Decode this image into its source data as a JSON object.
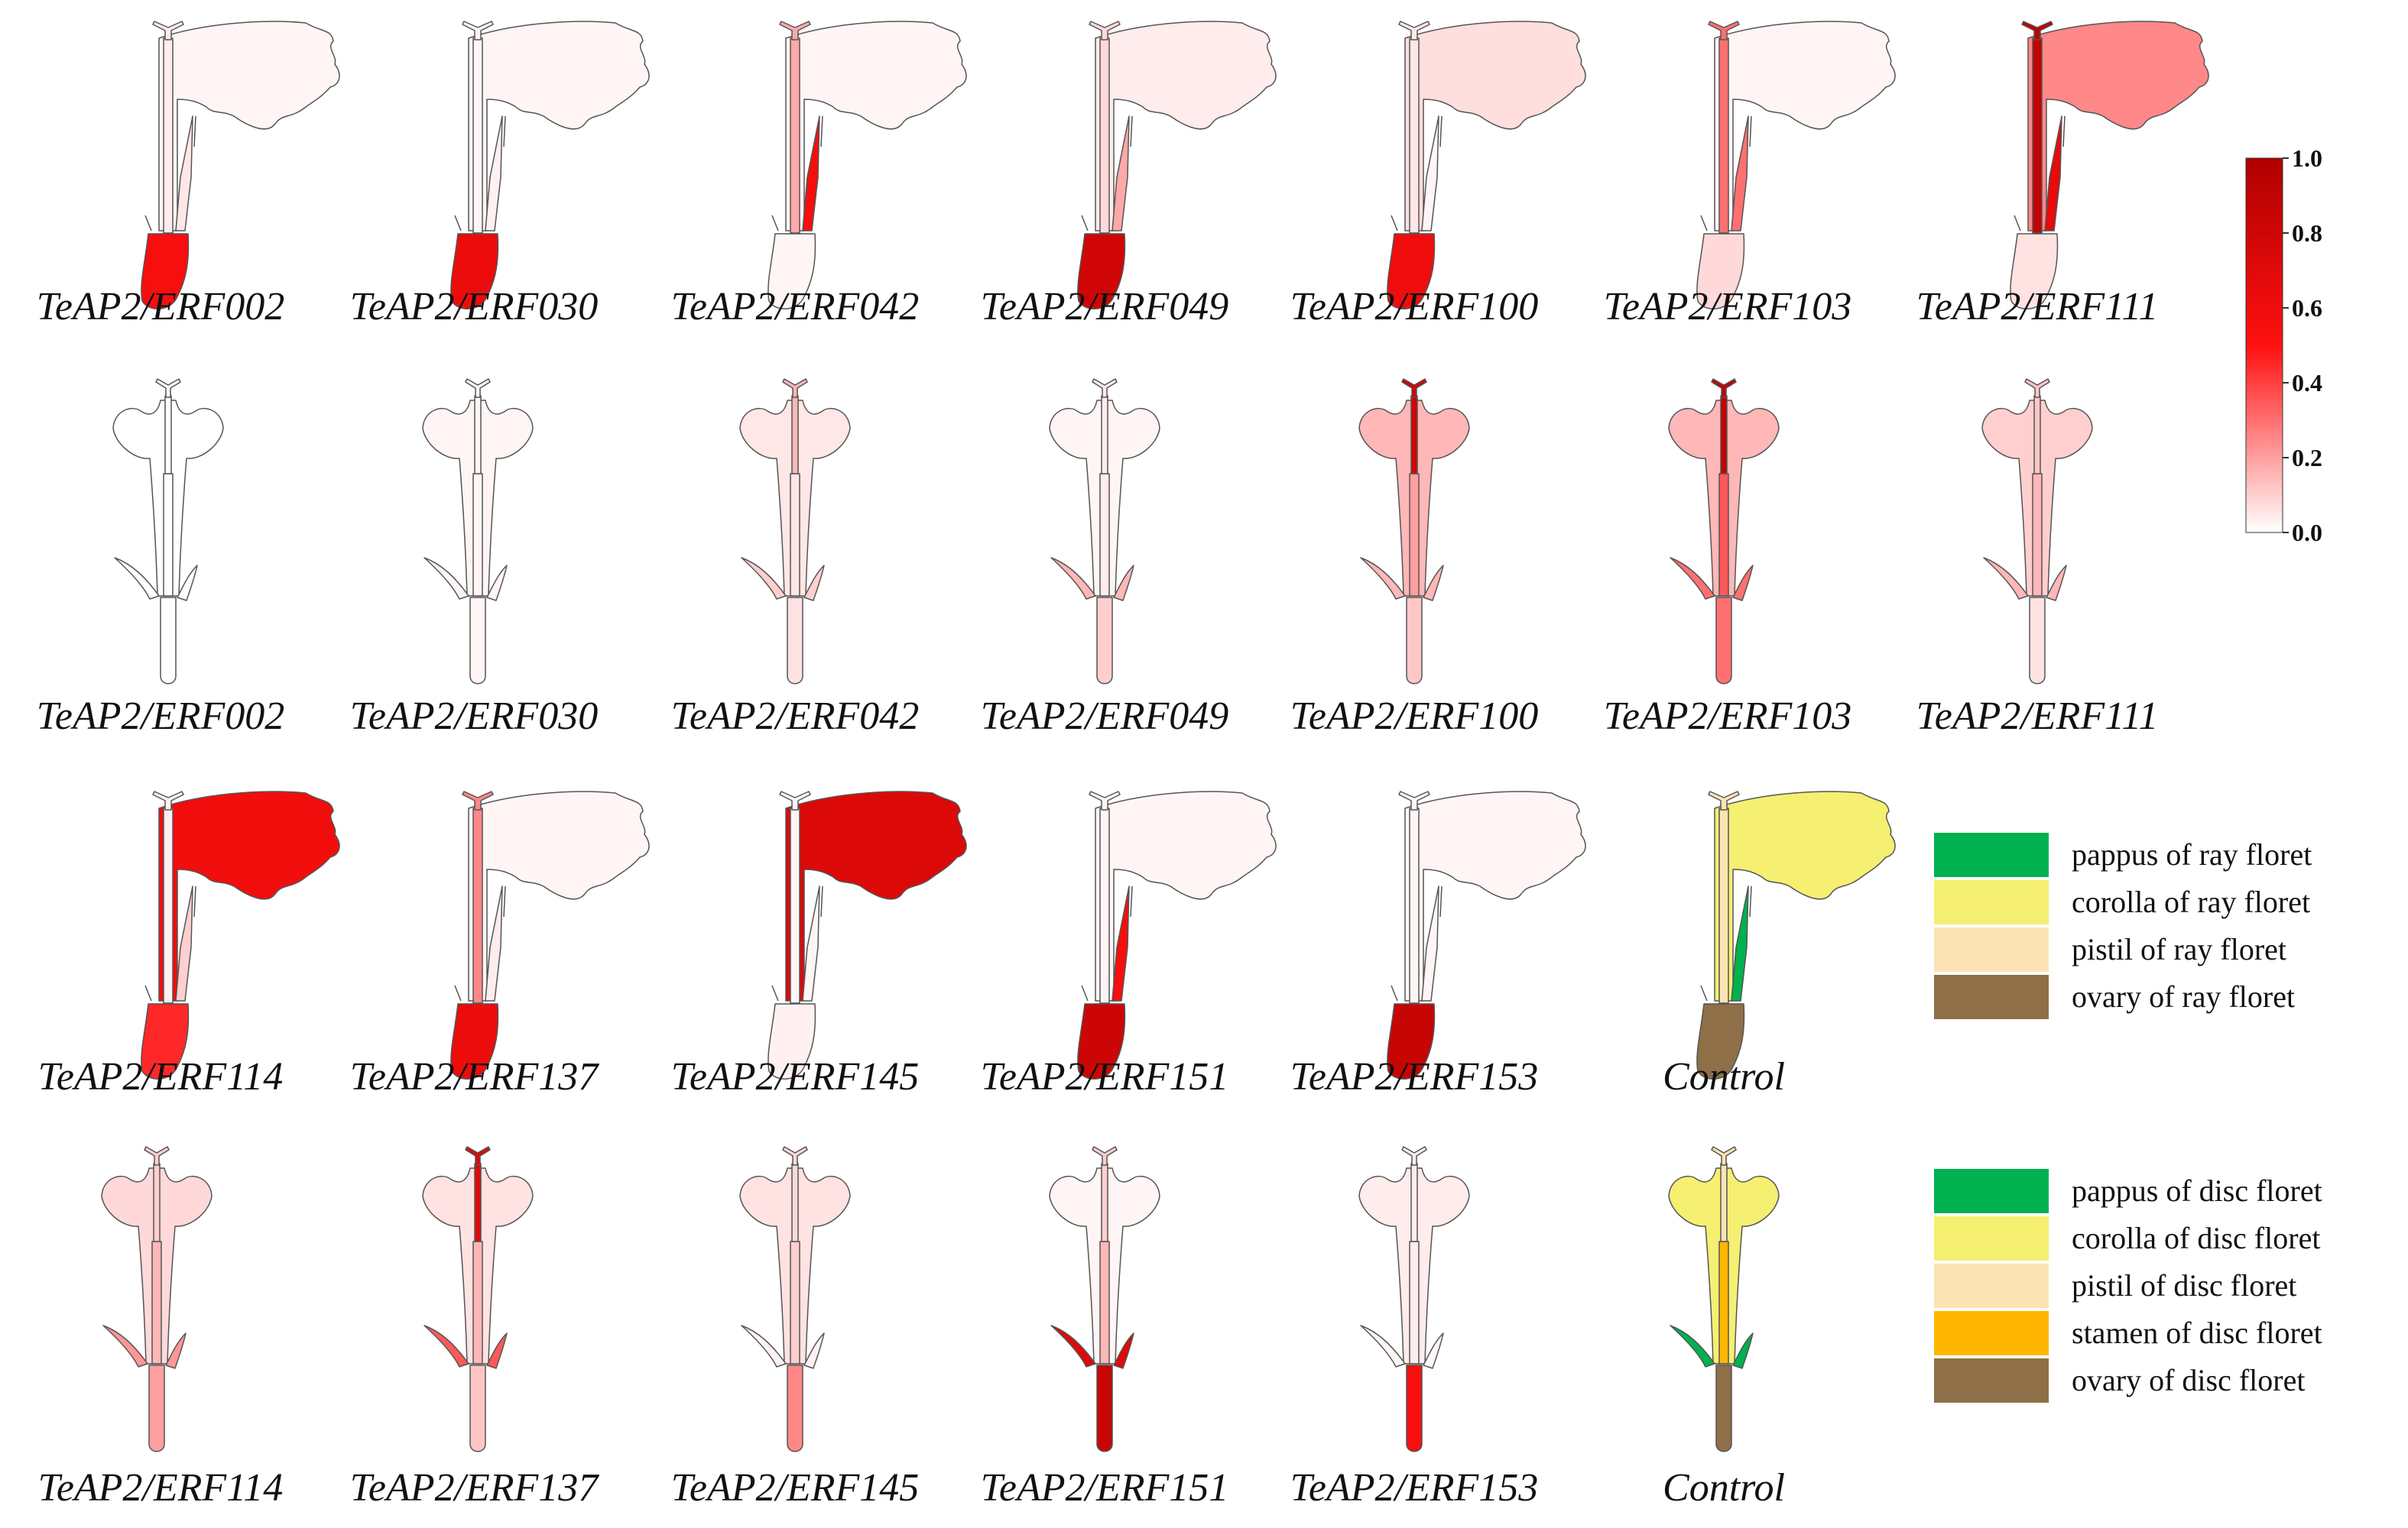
{
  "colormap": {
    "low": "#ffffff",
    "mid": "#ff1010",
    "high": "#b00000"
  },
  "colorbar": {
    "ticks": [
      "1.0",
      "0.8",
      "0.6",
      "0.4",
      "0.2",
      "0.0"
    ]
  },
  "rows": [
    {
      "type": "ray",
      "items": [
        {
          "label": "TeAP2/ERF002",
          "ovary": 0.55,
          "pistil": 0.04,
          "corolla": 0.02,
          "pappus": 0.05
        },
        {
          "label": "TeAP2/ERF030",
          "ovary": 0.62,
          "pistil": 0.02,
          "corolla": 0.02,
          "pappus": 0.03
        },
        {
          "label": "TeAP2/ERF042",
          "ovary": 0.02,
          "pistil": 0.18,
          "corolla": 0.02,
          "pappus": 0.55
        },
        {
          "label": "TeAP2/ERF049",
          "ovary": 0.8,
          "pistil": 0.08,
          "corolla": 0.04,
          "pappus": 0.18
        },
        {
          "label": "TeAP2/ERF100",
          "ovary": 0.6,
          "pistil": 0.05,
          "corolla": 0.07,
          "pappus": 0.02
        },
        {
          "label": "TeAP2/ERF103",
          "ovary": 0.08,
          "pistil": 0.3,
          "corolla": 0.02,
          "pappus": 0.3
        },
        {
          "label": "TeAP2/ERF111",
          "ovary": 0.06,
          "pistil": 0.9,
          "corolla": 0.25,
          "pappus": 0.65
        }
      ]
    },
    {
      "type": "disc",
      "items": [
        {
          "label": "TeAP2/ERF002",
          "ovary": 0.0,
          "pistil": 0.0,
          "corolla": 0.0,
          "pappus": 0.0,
          "stamen": 0.0
        },
        {
          "label": "TeAP2/ERF030",
          "ovary": 0.02,
          "pistil": 0.02,
          "corolla": 0.02,
          "pappus": 0.02,
          "stamen": 0.02
        },
        {
          "label": "TeAP2/ERF042",
          "ovary": 0.06,
          "pistil": 0.15,
          "corolla": 0.05,
          "pappus": 0.1,
          "stamen": 0.05
        },
        {
          "label": "TeAP2/ERF049",
          "ovary": 0.1,
          "pistil": 0.04,
          "corolla": 0.02,
          "pappus": 0.15,
          "stamen": 0.04
        },
        {
          "label": "TeAP2/ERF100",
          "ovary": 0.12,
          "pistil": 0.8,
          "corolla": 0.15,
          "pappus": 0.15,
          "stamen": 0.2
        },
        {
          "label": "TeAP2/ERF103",
          "ovary": 0.3,
          "pistil": 0.9,
          "corolla": 0.15,
          "pappus": 0.3,
          "stamen": 0.35
        },
        {
          "label": "TeAP2/ERF111",
          "ovary": 0.06,
          "pistil": 0.12,
          "corolla": 0.1,
          "pappus": 0.15,
          "stamen": 0.15
        }
      ]
    },
    {
      "type": "ray",
      "items": [
        {
          "label": "TeAP2/ERF114",
          "ovary": 0.45,
          "pistil": 0.03,
          "corolla": 0.58,
          "pappus": 0.1
        },
        {
          "label": "TeAP2/ERF137",
          "ovary": 0.62,
          "pistil": 0.25,
          "corolla": 0.02,
          "pappus": 0.04
        },
        {
          "label": "TeAP2/ERF145",
          "ovary": 0.03,
          "pistil": 0.02,
          "corolla": 0.72,
          "pappus": 0.02
        },
        {
          "label": "TeAP2/ERF151",
          "ovary": 0.82,
          "pistil": 0.02,
          "corolla": 0.02,
          "pappus": 0.55
        },
        {
          "label": "TeAP2/ERF153",
          "ovary": 0.85,
          "pistil": 0.02,
          "corolla": 0.02,
          "pappus": 0.02
        },
        {
          "label": "Control",
          "control": true
        }
      ]
    },
    {
      "type": "disc",
      "items": [
        {
          "label": "TeAP2/ERF114",
          "ovary": 0.2,
          "pistil": 0.1,
          "corolla": 0.08,
          "pappus": 0.22,
          "stamen": 0.15
        },
        {
          "label": "TeAP2/ERF137",
          "ovary": 0.12,
          "pistil": 0.7,
          "corolla": 0.06,
          "pappus": 0.35,
          "stamen": 0.15
        },
        {
          "label": "TeAP2/ERF145",
          "ovary": 0.25,
          "pistil": 0.08,
          "corolla": 0.06,
          "pappus": 0.03,
          "stamen": 0.1
        },
        {
          "label": "TeAP2/ERF151",
          "ovary": 0.85,
          "pistil": 0.1,
          "corolla": 0.02,
          "pappus": 0.7,
          "stamen": 0.15
        },
        {
          "label": "TeAP2/ERF153",
          "ovary": 0.55,
          "pistil": 0.04,
          "corolla": 0.04,
          "pappus": 0.02,
          "stamen": 0.04
        },
        {
          "label": "Control",
          "control": true
        }
      ]
    }
  ],
  "legend_ray": [
    {
      "label": "pappus of ray floret",
      "color": "#00b14f"
    },
    {
      "label": "corolla of ray floret",
      "color": "#f5ef72"
    },
    {
      "label": "pistil of ray floret",
      "color": "#fde4b4"
    },
    {
      "label": "ovary of ray floret",
      "color": "#8f6f47"
    }
  ],
  "legend_disc": [
    {
      "label": "pappus of disc floret",
      "color": "#00b14f"
    },
    {
      "label": "corolla of disc floret",
      "color": "#f5ef72"
    },
    {
      "label": "pistil of disc floret",
      "color": "#fde4b4"
    },
    {
      "label": "stamen of disc floret",
      "color": "#ffb600"
    },
    {
      "label": "ovary of disc floret",
      "color": "#8f6f47"
    }
  ]
}
